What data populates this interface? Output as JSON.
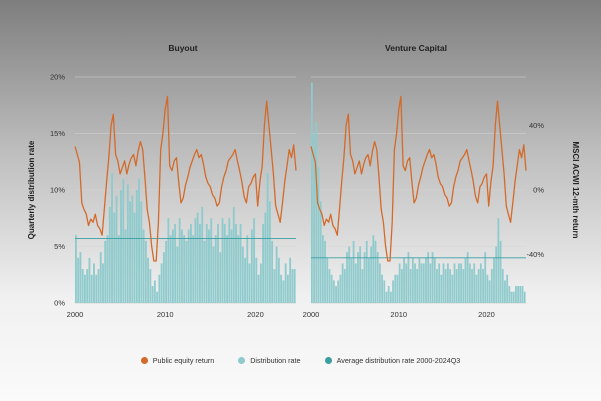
{
  "colors": {
    "equity_line": "#d46a2a",
    "bars": "#8fcacc",
    "avg_line": "#3a9ea3",
    "gridline": "#d6d6d6"
  },
  "legend": {
    "items": [
      {
        "label": "Public equity return",
        "color": "#d46a2a"
      },
      {
        "label": "Distribution rate",
        "color": "#8fcacc"
      },
      {
        "label": "Average distribution rate 2000-2024Q3",
        "color": "#3a9ea3"
      }
    ]
  },
  "axes": {
    "left_label": "Quarterly distribution rate",
    "right_label": "MSCI ACWI 12-mth return"
  },
  "chart_data": [
    {
      "type": "bar",
      "title": "Buyout",
      "ylabel": "Quarterly distribution rate",
      "ylim": [
        0,
        20
      ],
      "yticks": [
        "0%",
        "5%",
        "10%",
        "15%",
        "20%"
      ],
      "xticks": [
        "2000",
        "2010",
        "2020"
      ],
      "x_start": 2000,
      "x_end": 2024.5,
      "grid": true,
      "average_distribution_rate": 5.7,
      "distribution_rate": {
        "x": [
          2000,
          2000.25,
          2000.5,
          2000.75,
          2001,
          2001.25,
          2001.5,
          2001.75,
          2002,
          2002.25,
          2002.5,
          2002.75,
          2003,
          2003.25,
          2003.5,
          2003.75,
          2004,
          2004.25,
          2004.5,
          2004.75,
          2005,
          2005.25,
          2005.5,
          2005.75,
          2006,
          2006.25,
          2006.5,
          2006.75,
          2007,
          2007.25,
          2007.5,
          2007.75,
          2008,
          2008.25,
          2008.5,
          2008.75,
          2009,
          2009.25,
          2009.5,
          2009.75,
          2010,
          2010.25,
          2010.5,
          2010.75,
          2011,
          2011.25,
          2011.5,
          2011.75,
          2012,
          2012.25,
          2012.5,
          2012.75,
          2013,
          2013.25,
          2013.5,
          2013.75,
          2014,
          2014.25,
          2014.5,
          2014.75,
          2015,
          2015.25,
          2015.5,
          2015.75,
          2016,
          2016.25,
          2016.5,
          2016.75,
          2017,
          2017.25,
          2017.5,
          2017.75,
          2018,
          2018.25,
          2018.5,
          2018.75,
          2019,
          2019.25,
          2019.5,
          2019.75,
          2020,
          2020.25,
          2020.5,
          2020.75,
          2021,
          2021.25,
          2021.5,
          2021.75,
          2022,
          2022.25,
          2022.5,
          2022.75,
          2023,
          2023.25,
          2023.5,
          2023.75,
          2024,
          2024.25
        ],
        "values": [
          6.0,
          4.0,
          4.5,
          3.0,
          2.5,
          3.0,
          4.0,
          2.5,
          3.5,
          2.5,
          3.0,
          4.5,
          3.5,
          5.5,
          6.0,
          8.5,
          11.5,
          8.0,
          9.5,
          6.0,
          10.0,
          11.0,
          6.5,
          10.5,
          9.0,
          9.5,
          8.0,
          10.0,
          11.0,
          9.0,
          6.5,
          5.5,
          4.0,
          3.0,
          1.5,
          2.0,
          1.0,
          2.5,
          3.5,
          4.5,
          5.5,
          7.5,
          6.0,
          6.5,
          7.0,
          5.0,
          7.5,
          6.5,
          6.0,
          5.5,
          6.5,
          7.0,
          6.0,
          7.5,
          8.0,
          7.0,
          8.5,
          5.5,
          7.0,
          6.5,
          7.5,
          5.0,
          6.0,
          7.0,
          4.5,
          7.5,
          7.0,
          6.0,
          7.5,
          6.5,
          8.5,
          7.0,
          6.0,
          7.0,
          5.0,
          4.0,
          6.0,
          3.5,
          6.5,
          7.5,
          4.0,
          2.5,
          3.5,
          7.0,
          8.0,
          11.5,
          9.0,
          5.5,
          3.0,
          5.0,
          4.0,
          2.5,
          2.0,
          3.5,
          2.5,
          4.0,
          3.0,
          3.0
        ]
      }
    },
    {
      "type": "bar",
      "title": "Venture Capital",
      "ylabel": "MSCI ACWI 12-mth return",
      "ylim": [
        0,
        20
      ],
      "y2lim": [
        -70,
        70
      ],
      "y2ticks": [
        "-40%",
        "0%",
        "40%"
      ],
      "xticks": [
        "2000",
        "2010",
        "2020"
      ],
      "x_start": 2000,
      "x_end": 2024.5,
      "grid": true,
      "average_distribution_rate": 4.0,
      "distribution_rate": {
        "x": [
          2000,
          2000.25,
          2000.5,
          2000.75,
          2001,
          2001.25,
          2001.5,
          2001.75,
          2002,
          2002.25,
          2002.5,
          2002.75,
          2003,
          2003.25,
          2003.5,
          2003.75,
          2004,
          2004.25,
          2004.5,
          2004.75,
          2005,
          2005.25,
          2005.5,
          2005.75,
          2006,
          2006.25,
          2006.5,
          2006.75,
          2007,
          2007.25,
          2007.5,
          2007.75,
          2008,
          2008.25,
          2008.5,
          2008.75,
          2009,
          2009.25,
          2009.5,
          2009.75,
          2010,
          2010.25,
          2010.5,
          2010.75,
          2011,
          2011.25,
          2011.5,
          2011.75,
          2012,
          2012.25,
          2012.5,
          2012.75,
          2013,
          2013.25,
          2013.5,
          2013.75,
          2014,
          2014.25,
          2014.5,
          2014.75,
          2015,
          2015.25,
          2015.5,
          2015.75,
          2016,
          2016.25,
          2016.5,
          2016.75,
          2017,
          2017.25,
          2017.5,
          2017.75,
          2018,
          2018.25,
          2018.5,
          2018.75,
          2019,
          2019.25,
          2019.5,
          2019.75,
          2020,
          2020.25,
          2020.5,
          2020.75,
          2021,
          2021.25,
          2021.5,
          2021.75,
          2022,
          2022.25,
          2022.5,
          2022.75,
          2023,
          2023.25,
          2023.5,
          2023.75,
          2024,
          2024.25
        ],
        "values": [
          19.5,
          15.0,
          16.0,
          12.0,
          9.0,
          6.0,
          5.5,
          4.0,
          3.0,
          2.5,
          2.0,
          1.5,
          2.0,
          2.5,
          3.5,
          3.0,
          4.5,
          5.0,
          4.0,
          5.5,
          3.5,
          4.5,
          5.0,
          3.0,
          4.5,
          5.5,
          4.0,
          5.0,
          6.0,
          5.5,
          4.5,
          3.5,
          2.5,
          2.0,
          1.0,
          1.5,
          1.0,
          2.0,
          2.5,
          2.5,
          3.5,
          3.0,
          4.0,
          3.5,
          4.5,
          3.0,
          4.0,
          3.5,
          3.0,
          4.0,
          3.5,
          3.5,
          4.0,
          4.5,
          3.5,
          4.5,
          4.0,
          3.0,
          3.5,
          2.5,
          3.5,
          3.0,
          3.5,
          3.0,
          2.5,
          3.5,
          3.0,
          3.5,
          3.5,
          3.0,
          4.0,
          4.5,
          3.5,
          3.0,
          3.5,
          2.5,
          3.0,
          3.5,
          3.0,
          4.5,
          2.5,
          2.0,
          3.0,
          4.0,
          5.0,
          7.5,
          5.5,
          3.0,
          2.0,
          2.5,
          1.5,
          1.0,
          1.0,
          1.5,
          1.5,
          1.5,
          1.5,
          1.0
        ]
      }
    }
  ],
  "public_equity_return": {
    "x": [
      2000,
      2000.25,
      2000.5,
      2000.75,
      2001,
      2001.25,
      2001.5,
      2001.75,
      2002,
      2002.25,
      2002.5,
      2002.75,
      2003,
      2003.25,
      2003.5,
      2003.75,
      2004,
      2004.25,
      2004.5,
      2004.75,
      2005,
      2005.25,
      2005.5,
      2005.75,
      2006,
      2006.25,
      2006.5,
      2006.75,
      2007,
      2007.25,
      2007.5,
      2007.75,
      2008,
      2008.25,
      2008.5,
      2008.75,
      2009,
      2009.25,
      2009.5,
      2009.75,
      2010,
      2010.25,
      2010.5,
      2010.75,
      2011,
      2011.25,
      2011.5,
      2011.75,
      2012,
      2012.25,
      2012.5,
      2012.75,
      2013,
      2013.25,
      2013.5,
      2013.75,
      2014,
      2014.25,
      2014.5,
      2014.75,
      2015,
      2015.25,
      2015.5,
      2015.75,
      2016,
      2016.25,
      2016.5,
      2016.75,
      2017,
      2017.25,
      2017.5,
      2017.75,
      2018,
      2018.25,
      2018.5,
      2018.75,
      2019,
      2019.25,
      2019.5,
      2019.75,
      2020,
      2020.25,
      2020.5,
      2020.75,
      2021,
      2021.25,
      2021.5,
      2021.75,
      2022,
      2022.25,
      2022.5,
      2022.75,
      2023,
      2023.25,
      2023.5,
      2023.75,
      2024,
      2024.25,
      2024.5
    ],
    "values": [
      27,
      22,
      17,
      -8,
      -12,
      -15,
      -22,
      -18,
      -20,
      -15,
      -22,
      -24,
      -28,
      -12,
      5,
      20,
      40,
      47,
      22,
      18,
      10,
      14,
      18,
      10,
      16,
      20,
      22,
      15,
      24,
      30,
      25,
      8,
      -12,
      -20,
      -35,
      -44,
      -44,
      -20,
      25,
      35,
      50,
      58,
      15,
      12,
      18,
      20,
      5,
      -8,
      -5,
      3,
      8,
      14,
      18,
      22,
      25,
      20,
      22,
      16,
      8,
      4,
      2,
      -3,
      -5,
      -10,
      -8,
      2,
      8,
      12,
      18,
      20,
      22,
      25,
      18,
      12,
      5,
      -4,
      -8,
      2,
      4,
      8,
      10,
      -10,
      5,
      15,
      40,
      55,
      40,
      25,
      10,
      -10,
      -15,
      -20,
      -8,
      5,
      15,
      25,
      20,
      28,
      12
    ]
  }
}
